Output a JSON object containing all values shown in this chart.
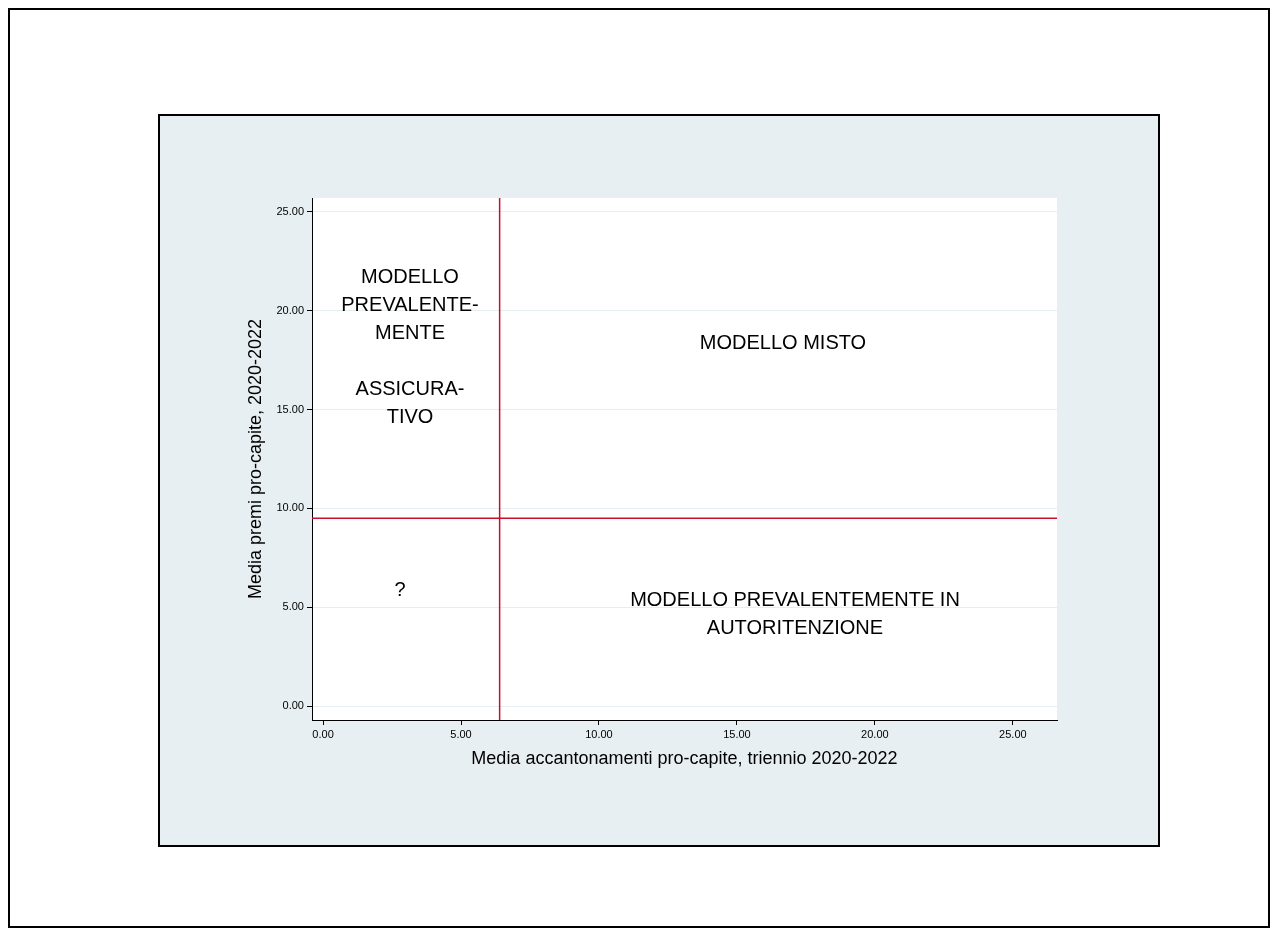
{
  "chart_data": {
    "type": "scatter",
    "xlabel": "Media accantonamenti pro-capite, triennio 2020-2022",
    "ylabel": "Media premi pro-capite, 2020-2022",
    "xlim": [
      -0.4,
      26.6
    ],
    "ylim": [
      -0.7,
      25.7
    ],
    "xticks": [
      {
        "value": 0,
        "label": "0.00"
      },
      {
        "value": 5,
        "label": "5.00"
      },
      {
        "value": 10,
        "label": "10.00"
      },
      {
        "value": 15,
        "label": "15.00"
      },
      {
        "value": 20,
        "label": "20.00"
      },
      {
        "value": 25,
        "label": "25.00"
      }
    ],
    "yticks": [
      {
        "value": 0,
        "label": "0.00"
      },
      {
        "value": 5,
        "label": "5.00"
      },
      {
        "value": 10,
        "label": "10.00"
      },
      {
        "value": 15,
        "label": "15.00"
      },
      {
        "value": 20,
        "label": "20.00"
      },
      {
        "value": 25,
        "label": "25.00"
      }
    ],
    "grid": "y",
    "ref_lines": [
      {
        "axis": "x",
        "value": 6.4,
        "color": "#c8102e"
      },
      {
        "axis": "y",
        "value": 9.5,
        "color": "#c8102e"
      }
    ],
    "annotations": [
      "MODELLO\nPREVALENTE-\nMENTE\n\nASSICURA-\nTIVO",
      "MODELLO MISTO",
      "?",
      "MODELLO PREVALENTEMENTE IN\nAUTORITENZIONE"
    ]
  }
}
